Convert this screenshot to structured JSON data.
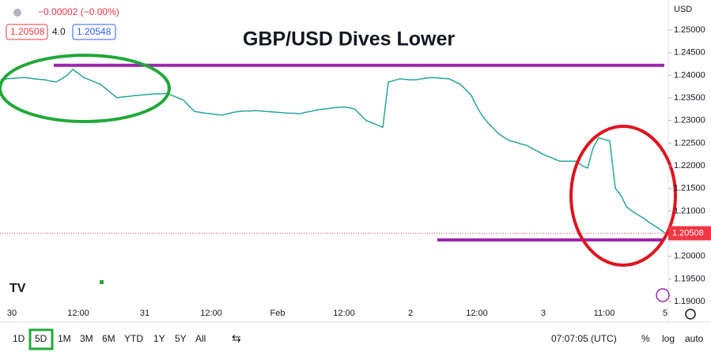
{
  "chart_data": {
    "type": "line",
    "title": "GBP/USD Dives Lower",
    "currency": "USD",
    "legend": {
      "change": "−0.00002 (−0.00%)",
      "bid": "1.20508",
      "spread": "4.0",
      "ask": "1.20548"
    },
    "categories": [
      null,
      null,
      "30",
      null,
      null,
      null,
      null,
      null,
      null,
      null,
      null,
      null,
      null,
      null,
      "12:00",
      null,
      null,
      null,
      null,
      null,
      null,
      null,
      null,
      null,
      null,
      null,
      "31",
      null,
      null,
      null,
      null,
      null,
      null,
      null,
      null,
      null,
      null,
      null,
      "12:00",
      null,
      null,
      null,
      null,
      null,
      null,
      null,
      null,
      null,
      null,
      null,
      "Feb",
      null,
      null,
      null,
      null,
      null,
      null,
      null,
      null,
      null,
      null,
      null,
      "12:00",
      null,
      null,
      null,
      null,
      null,
      null,
      null,
      null,
      null,
      null,
      null,
      "2",
      null,
      null,
      null,
      null,
      null,
      null,
      null,
      null,
      null,
      null,
      null,
      "12:00",
      null,
      null,
      null,
      null,
      null,
      null,
      null,
      null,
      null,
      null,
      null,
      "3",
      null,
      null,
      null,
      null,
      null,
      null,
      null,
      null,
      null,
      null,
      "11:00",
      null,
      null,
      null,
      null,
      null,
      null,
      null,
      null,
      null,
      null,
      "5"
    ],
    "series": [
      {
        "name": "GBP/USD",
        "color": "#26a69a",
        "values": [
          1.239,
          1.2392,
          1.2393,
          1.2394,
          1.2395,
          1.2394,
          1.2392,
          1.2391,
          1.239,
          1.2387,
          1.2385,
          1.2392,
          1.24,
          1.2413,
          1.2404,
          1.2395,
          1.239,
          1.2385,
          1.238,
          1.237,
          1.236,
          1.235,
          1.2352,
          1.2353,
          1.2355,
          1.2356,
          1.2357,
          1.2358,
          1.2359,
          1.2359,
          1.236,
          1.2355,
          1.235,
          1.2345,
          1.2332,
          1.232,
          1.2318,
          1.2316,
          1.2315,
          1.2313,
          1.2312,
          1.2315,
          1.2318,
          1.232,
          1.2321,
          1.2321,
          1.2322,
          1.2321,
          1.232,
          1.2319,
          1.2318,
          1.2317,
          1.2316,
          1.2316,
          1.2315,
          1.2318,
          1.232,
          1.2323,
          1.2325,
          1.2326,
          1.2328,
          1.2329,
          1.233,
          1.2328,
          1.2325,
          1.2312,
          1.23,
          1.2295,
          1.229,
          1.2285,
          1.2385,
          1.2388,
          1.2392,
          1.2391,
          1.239,
          1.239,
          1.2392,
          1.2394,
          1.2395,
          1.2394,
          1.2393,
          1.2392,
          1.2386,
          1.238,
          1.2368,
          1.2355,
          1.233,
          1.231,
          1.2295,
          1.2282,
          1.227,
          1.2262,
          1.2255,
          1.2252,
          1.2248,
          1.2245,
          1.2238,
          1.2232,
          1.2225,
          1.222,
          1.2215,
          1.221,
          1.221,
          1.221,
          1.221,
          1.22,
          1.2195,
          1.224,
          1.2262,
          1.2258,
          1.2255,
          1.215,
          1.2135,
          1.211,
          1.21,
          1.2092,
          1.2085,
          1.2076,
          1.2068,
          1.206,
          1.2051
        ]
      }
    ],
    "last_price": 1.20508,
    "hlines": [
      {
        "value": 1.2422,
        "color": "#9c27b0"
      },
      {
        "value": 1.2036,
        "color": "#9c27b0"
      }
    ],
    "ylim": [
      1.18547,
      1.25663
    ],
    "yticks": [
      {
        "value": 1.25,
        "label": "1.25000"
      },
      {
        "value": 1.245,
        "label": "1.24500"
      },
      {
        "value": 1.24,
        "label": "1.24000"
      },
      {
        "value": 1.235,
        "label": "1.23500"
      },
      {
        "value": 1.23,
        "label": "1.23000"
      },
      {
        "value": 1.225,
        "label": "1.22500"
      },
      {
        "value": 1.22,
        "label": "1.22000"
      },
      {
        "value": 1.215,
        "label": "1.21500"
      },
      {
        "value": 1.21,
        "label": "1.21000"
      },
      {
        "value": 1.205,
        "label": "1.20500"
      },
      {
        "value": 1.2,
        "label": "1.20000"
      },
      {
        "value": 1.195,
        "label": "1.19500"
      },
      {
        "value": 1.19,
        "label": "1.19000"
      }
    ],
    "grid": false,
    "toolbar": {
      "ranges": [
        "1D",
        "5D",
        "1M",
        "3M",
        "6M",
        "YTD",
        "1Y",
        "5Y",
        "All"
      ],
      "active": "5D",
      "time": "07:07:05 (UTC)",
      "options": [
        "%",
        "log",
        "auto"
      ]
    }
  }
}
